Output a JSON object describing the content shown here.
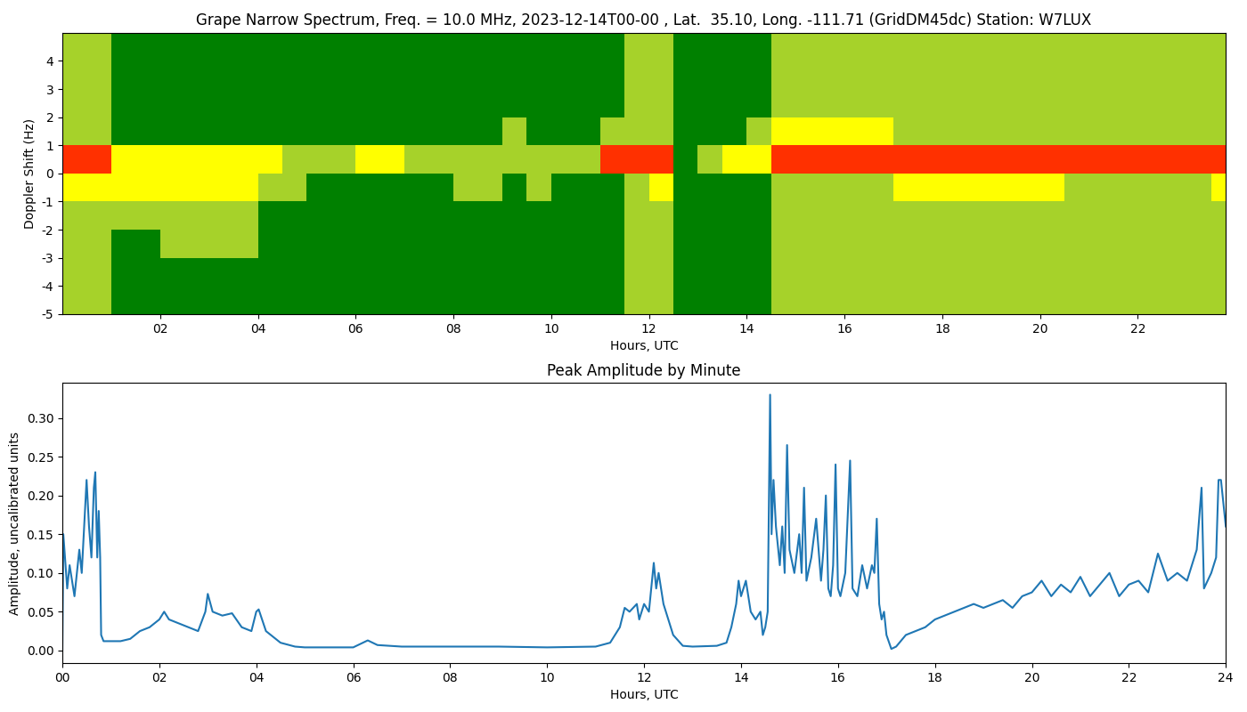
{
  "chart_data": [
    {
      "type": "heatmap",
      "title": "Grape Narrow Spectrum, Freq. = 10.0 MHz, 2023-12-14T00-00 , Lat.  35.10, Long. -111.71 (GridDM45dc) Station: W7LUX",
      "x_label": "Hours, UTC",
      "y_label": "Doppler Shift (Hz)",
      "xlim": [
        0,
        23.8
      ],
      "ylim": [
        -5,
        5
      ],
      "xticks": [
        {
          "value": 2,
          "label": "02"
        },
        {
          "value": 4,
          "label": "04"
        },
        {
          "value": 6,
          "label": "06"
        },
        {
          "value": 8,
          "label": "08"
        },
        {
          "value": 10,
          "label": "10"
        },
        {
          "value": 12,
          "label": "12"
        },
        {
          "value": 14,
          "label": "14"
        },
        {
          "value": 16,
          "label": "16"
        },
        {
          "value": 18,
          "label": "18"
        },
        {
          "value": 20,
          "label": "20"
        },
        {
          "value": 22,
          "label": "22"
        }
      ],
      "yticks": [
        -5,
        -4,
        -3,
        -2,
        -1,
        0,
        1,
        2,
        3,
        4
      ],
      "x_edges": [
        0,
        0.5,
        1,
        1.5,
        2,
        2.5,
        3,
        3.5,
        4,
        4.5,
        5,
        5.5,
        6,
        6.5,
        7,
        7.5,
        8,
        8.5,
        9,
        9.5,
        10,
        10.5,
        11,
        11.5,
        12,
        12.5,
        13,
        13.5,
        14,
        14.5,
        15,
        15.5,
        16,
        16.5,
        17,
        17.5,
        18,
        18.5,
        19,
        19.5,
        20,
        20.5,
        21,
        21.5,
        22,
        22.5,
        23,
        23.5,
        24
      ],
      "y_edges": [
        -5,
        -4,
        -3,
        -2,
        -1,
        0,
        1,
        2,
        3,
        4,
        5
      ],
      "clim": [
        0,
        3
      ],
      "cells": [
        [
          1,
          1,
          0,
          0,
          0,
          0,
          0,
          0,
          0,
          0,
          0,
          0,
          0,
          0,
          0,
          0,
          0,
          0,
          0,
          0,
          0,
          0,
          0,
          1,
          1,
          0,
          0,
          0,
          0,
          1,
          1,
          1,
          1,
          1,
          1,
          1,
          1,
          1,
          1,
          1,
          1,
          1,
          1,
          1,
          1,
          1,
          1,
          1
        ],
        [
          1,
          1,
          0,
          0,
          0,
          0,
          0,
          0,
          0,
          0,
          0,
          0,
          0,
          0,
          0,
          0,
          0,
          0,
          0,
          0,
          0,
          0,
          0,
          1,
          1,
          0,
          0,
          0,
          0,
          1,
          1,
          1,
          1,
          1,
          1,
          1,
          1,
          1,
          1,
          1,
          1,
          1,
          1,
          1,
          1,
          1,
          1,
          1
        ],
        [
          1,
          1,
          0,
          0,
          1,
          1,
          1,
          1,
          0,
          0,
          0,
          0,
          0,
          0,
          0,
          0,
          0,
          0,
          0,
          0,
          0,
          0,
          0,
          1,
          1,
          0,
          0,
          0,
          0,
          1,
          1,
          1,
          1,
          1,
          1,
          1,
          1,
          1,
          1,
          1,
          1,
          1,
          1,
          1,
          1,
          1,
          1,
          1
        ],
        [
          1,
          1,
          1,
          1,
          1,
          1,
          1,
          1,
          0,
          0,
          0,
          0,
          0,
          0,
          0,
          0,
          0,
          0,
          0,
          0,
          0,
          0,
          0,
          1,
          1,
          0,
          0,
          0,
          0,
          1,
          1,
          1,
          1,
          1,
          1,
          1,
          1,
          1,
          1,
          1,
          1,
          1,
          1,
          1,
          1,
          1,
          1,
          1
        ],
        [
          2,
          2,
          2,
          2,
          2,
          2,
          2,
          2,
          1,
          1,
          0,
          0,
          0,
          0,
          0,
          0,
          1,
          1,
          0,
          1,
          0,
          0,
          0,
          1,
          2,
          0,
          0,
          0,
          0,
          1,
          1,
          1,
          1,
          1,
          2,
          2,
          2,
          2,
          2,
          2,
          2,
          1,
          1,
          1,
          1,
          1,
          1,
          2
        ],
        [
          3,
          3,
          2,
          2,
          2,
          2,
          2,
          2,
          2,
          1,
          1,
          1,
          2,
          2,
          1,
          1,
          1,
          1,
          1,
          1,
          1,
          1,
          3,
          3,
          3,
          0,
          1,
          2,
          2,
          3,
          3,
          3,
          3,
          3,
          3,
          3,
          3,
          3,
          3,
          3,
          3,
          3,
          3,
          3,
          3,
          3,
          3,
          3
        ],
        [
          1,
          1,
          0,
          0,
          0,
          0,
          0,
          0,
          0,
          0,
          0,
          0,
          0,
          0,
          0,
          0,
          0,
          0,
          1,
          0,
          0,
          0,
          1,
          1,
          1,
          0,
          0,
          0,
          1,
          2,
          2,
          2,
          2,
          2,
          1,
          1,
          1,
          1,
          1,
          1,
          1,
          1,
          1,
          1,
          1,
          1,
          1,
          1
        ],
        [
          1,
          1,
          0,
          0,
          0,
          0,
          0,
          0,
          0,
          0,
          0,
          0,
          0,
          0,
          0,
          0,
          0,
          0,
          0,
          0,
          0,
          0,
          0,
          1,
          1,
          0,
          0,
          0,
          0,
          1,
          1,
          1,
          1,
          1,
          1,
          1,
          1,
          1,
          1,
          1,
          1,
          1,
          1,
          1,
          1,
          1,
          1,
          1
        ],
        [
          1,
          1,
          0,
          0,
          0,
          0,
          0,
          0,
          0,
          0,
          0,
          0,
          0,
          0,
          0,
          0,
          0,
          0,
          0,
          0,
          0,
          0,
          0,
          1,
          1,
          0,
          0,
          0,
          0,
          1,
          1,
          1,
          1,
          1,
          1,
          1,
          1,
          1,
          1,
          1,
          1,
          1,
          1,
          1,
          1,
          1,
          1,
          1
        ],
        [
          1,
          1,
          0,
          0,
          0,
          0,
          0,
          0,
          0,
          0,
          0,
          0,
          0,
          0,
          0,
          0,
          0,
          0,
          0,
          0,
          0,
          0,
          0,
          1,
          1,
          0,
          0,
          0,
          0,
          1,
          1,
          1,
          1,
          1,
          1,
          1,
          1,
          1,
          1,
          1,
          1,
          1,
          1,
          1,
          1,
          1,
          1,
          1
        ]
      ]
    },
    {
      "type": "line",
      "title": "Peak Amplitude by Minute",
      "x_label": "Hours, UTC",
      "y_label": "Amplitude, uncalibrated units",
      "xlim": [
        0,
        24
      ],
      "ylim": [
        -0.016,
        0.345
      ],
      "xticks": [
        {
          "value": 0,
          "label": "00"
        },
        {
          "value": 2,
          "label": "02"
        },
        {
          "value": 4,
          "label": "04"
        },
        {
          "value": 6,
          "label": "06"
        },
        {
          "value": 8,
          "label": "08"
        },
        {
          "value": 10,
          "label": "10"
        },
        {
          "value": 12,
          "label": "12"
        },
        {
          "value": 14,
          "label": "14"
        },
        {
          "value": 16,
          "label": "16"
        },
        {
          "value": 18,
          "label": "18"
        },
        {
          "value": 20,
          "label": "20"
        },
        {
          "value": 22,
          "label": "22"
        },
        {
          "value": 24,
          "label": "24"
        }
      ],
      "yticks": [
        {
          "value": 0,
          "label": "0.00"
        },
        {
          "value": 0.05,
          "label": "0.05"
        },
        {
          "value": 0.1,
          "label": "0.10"
        },
        {
          "value": 0.15,
          "label": "0.15"
        },
        {
          "value": 0.2,
          "label": "0.20"
        },
        {
          "value": 0.25,
          "label": "0.25"
        },
        {
          "value": 0.3,
          "label": "0.30"
        }
      ],
      "color": "#1f77b4",
      "x": [
        0.0,
        0.02,
        0.1,
        0.15,
        0.25,
        0.35,
        0.4,
        0.5,
        0.55,
        0.6,
        0.65,
        0.68,
        0.72,
        0.75,
        0.78,
        0.8,
        0.85,
        1.0,
        1.2,
        1.4,
        1.6,
        1.8,
        2.0,
        2.1,
        2.2,
        2.4,
        2.6,
        2.8,
        2.95,
        3.0,
        3.1,
        3.3,
        3.5,
        3.7,
        3.9,
        4.0,
        4.05,
        4.2,
        4.5,
        4.8,
        5.0,
        5.5,
        6.0,
        6.3,
        6.5,
        7.0,
        8.0,
        9.0,
        10.0,
        11.0,
        11.3,
        11.5,
        11.6,
        11.7,
        11.85,
        11.9,
        12.0,
        12.1,
        12.2,
        12.25,
        12.3,
        12.4,
        12.5,
        12.6,
        12.8,
        13.0,
        13.5,
        13.7,
        13.8,
        13.9,
        13.95,
        14.0,
        14.1,
        14.2,
        14.3,
        14.4,
        14.45,
        14.5,
        14.55,
        14.6,
        14.63,
        14.67,
        14.72,
        14.8,
        14.85,
        14.9,
        14.95,
        15.0,
        15.1,
        15.2,
        15.25,
        15.3,
        15.35,
        15.45,
        15.55,
        15.65,
        15.7,
        15.75,
        15.8,
        15.85,
        15.9,
        15.95,
        16.0,
        16.05,
        16.15,
        16.25,
        16.3,
        16.4,
        16.5,
        16.6,
        16.7,
        16.75,
        16.8,
        16.85,
        16.9,
        16.95,
        17.0,
        17.1,
        17.2,
        17.4,
        17.6,
        17.8,
        18.0,
        18.2,
        18.4,
        18.6,
        18.8,
        19.0,
        19.2,
        19.4,
        19.6,
        19.8,
        20.0,
        20.2,
        20.4,
        20.6,
        20.8,
        21.0,
        21.2,
        21.4,
        21.6,
        21.8,
        22.0,
        22.2,
        22.4,
        22.6,
        22.8,
        23.0,
        23.2,
        23.4,
        23.5,
        23.55,
        23.7,
        23.8,
        23.85,
        23.9,
        24.0
      ],
      "values": [
        0.0,
        0.15,
        0.08,
        0.11,
        0.07,
        0.13,
        0.1,
        0.22,
        0.16,
        0.12,
        0.21,
        0.23,
        0.12,
        0.18,
        0.12,
        0.02,
        0.012,
        0.012,
        0.012,
        0.015,
        0.025,
        0.03,
        0.04,
        0.05,
        0.04,
        0.035,
        0.03,
        0.025,
        0.05,
        0.073,
        0.05,
        0.045,
        0.048,
        0.03,
        0.025,
        0.05,
        0.053,
        0.025,
        0.01,
        0.005,
        0.004,
        0.004,
        0.004,
        0.013,
        0.007,
        0.005,
        0.005,
        0.005,
        0.004,
        0.005,
        0.01,
        0.03,
        0.055,
        0.05,
        0.06,
        0.04,
        0.06,
        0.05,
        0.113,
        0.08,
        0.1,
        0.06,
        0.04,
        0.02,
        0.006,
        0.005,
        0.006,
        0.01,
        0.03,
        0.06,
        0.09,
        0.07,
        0.09,
        0.05,
        0.04,
        0.05,
        0.02,
        0.03,
        0.05,
        0.33,
        0.15,
        0.22,
        0.16,
        0.11,
        0.16,
        0.1,
        0.265,
        0.13,
        0.1,
        0.15,
        0.1,
        0.21,
        0.09,
        0.12,
        0.17,
        0.09,
        0.13,
        0.2,
        0.08,
        0.07,
        0.11,
        0.24,
        0.08,
        0.07,
        0.1,
        0.245,
        0.08,
        0.07,
        0.11,
        0.08,
        0.11,
        0.1,
        0.17,
        0.06,
        0.04,
        0.05,
        0.02,
        0.002,
        0.005,
        0.02,
        0.025,
        0.03,
        0.04,
        0.045,
        0.05,
        0.055,
        0.06,
        0.055,
        0.06,
        0.065,
        0.055,
        0.07,
        0.075,
        0.09,
        0.07,
        0.085,
        0.075,
        0.095,
        0.07,
        0.085,
        0.1,
        0.07,
        0.085,
        0.09,
        0.075,
        0.125,
        0.09,
        0.1,
        0.09,
        0.13,
        0.21,
        0.08,
        0.1,
        0.12,
        0.22,
        0.22,
        0.16
      ]
    }
  ]
}
